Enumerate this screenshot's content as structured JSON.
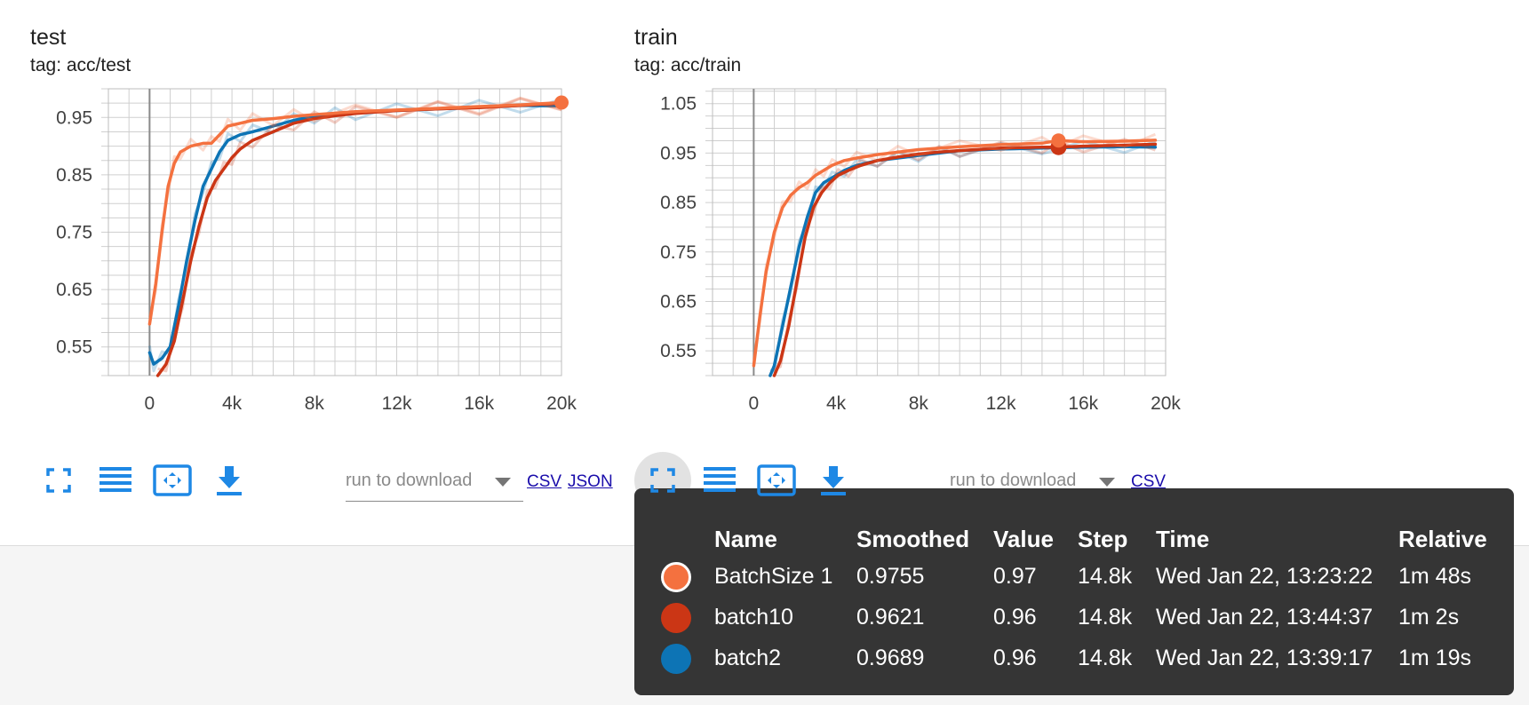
{
  "colors": {
    "batchsize1": "#f4713f",
    "batch10": "#cb3615",
    "batch2": "#0d74b5",
    "icon_blue": "#1e88e5"
  },
  "cards": [
    {
      "title": "test",
      "tag": "tag: acc/test"
    },
    {
      "title": "train",
      "tag": "tag: acc/train"
    }
  ],
  "toolbar": {
    "fullscreen_icon": "fullscreen-icon",
    "list_icon": "list-icon",
    "fit_domain_icon": "fit-domain-icon",
    "download_icon": "download-icon",
    "run_placeholder": "run to download",
    "csv_label": "CSV",
    "json_label": "JSON"
  },
  "chart_data": [
    {
      "type": "line",
      "title": "test",
      "subtitle": "tag: acc/test",
      "x_ticks": [
        "0",
        "4k",
        "8k",
        "12k",
        "16k",
        "20k"
      ],
      "y_ticks": [
        "0.55",
        "0.65",
        "0.75",
        "0.85",
        "0.95"
      ],
      "xlim": [
        -2000,
        20000
      ],
      "ylim": [
        0.5,
        1.0
      ],
      "grid": true,
      "series": [
        {
          "name": "batch2",
          "points": [
            [
              0,
              0.54
            ],
            [
              200,
              0.52
            ],
            [
              600,
              0.53
            ],
            [
              1000,
              0.55
            ],
            [
              1400,
              0.62
            ],
            [
              1800,
              0.7
            ],
            [
              2200,
              0.77
            ],
            [
              2600,
              0.83
            ],
            [
              3000,
              0.86
            ],
            [
              3400,
              0.89
            ],
            [
              3800,
              0.91
            ],
            [
              4400,
              0.92
            ],
            [
              5000,
              0.925
            ],
            [
              6000,
              0.935
            ],
            [
              7000,
              0.945
            ],
            [
              8000,
              0.952
            ],
            [
              9000,
              0.955
            ],
            [
              10000,
              0.958
            ],
            [
              12000,
              0.962
            ],
            [
              14000,
              0.965
            ],
            [
              16000,
              0.968
            ],
            [
              18000,
              0.971
            ],
            [
              20000,
              0.97
            ]
          ]
        },
        {
          "name": "batch10",
          "points": [
            [
              400,
              0.5
            ],
            [
              800,
              0.52
            ],
            [
              1200,
              0.56
            ],
            [
              1600,
              0.63
            ],
            [
              2000,
              0.7
            ],
            [
              2400,
              0.76
            ],
            [
              2800,
              0.81
            ],
            [
              3200,
              0.84
            ],
            [
              3600,
              0.86
            ],
            [
              4000,
              0.88
            ],
            [
              4400,
              0.895
            ],
            [
              5000,
              0.91
            ],
            [
              6000,
              0.925
            ],
            [
              7000,
              0.94
            ],
            [
              8000,
              0.948
            ],
            [
              9000,
              0.953
            ],
            [
              10000,
              0.957
            ],
            [
              12000,
              0.962
            ],
            [
              14000,
              0.965
            ],
            [
              16000,
              0.967
            ],
            [
              18000,
              0.971
            ],
            [
              20000,
              0.975
            ]
          ]
        },
        {
          "name": "BatchSize 1",
          "points": [
            [
              0,
              0.59
            ],
            [
              300,
              0.66
            ],
            [
              600,
              0.75
            ],
            [
              900,
              0.83
            ],
            [
              1200,
              0.87
            ],
            [
              1500,
              0.89
            ],
            [
              2000,
              0.9
            ],
            [
              2600,
              0.905
            ],
            [
              3000,
              0.905
            ],
            [
              3400,
              0.92
            ],
            [
              3800,
              0.935
            ],
            [
              4400,
              0.94
            ],
            [
              5000,
              0.945
            ],
            [
              6000,
              0.948
            ],
            [
              7000,
              0.952
            ],
            [
              8000,
              0.955
            ],
            [
              10000,
              0.96
            ],
            [
              12000,
              0.963
            ],
            [
              14000,
              0.966
            ],
            [
              16000,
              0.969
            ],
            [
              18000,
              0.972
            ],
            [
              20000,
              0.976
            ]
          ]
        }
      ]
    },
    {
      "type": "line",
      "title": "train",
      "subtitle": "tag: acc/train",
      "x_ticks": [
        "0",
        "4k",
        "8k",
        "12k",
        "16k",
        "20k"
      ],
      "y_ticks": [
        "0.55",
        "0.65",
        "0.75",
        "0.85",
        "0.95",
        "1.05"
      ],
      "xlim": [
        -2000,
        20000
      ],
      "ylim": [
        0.5,
        1.08
      ],
      "grid": true,
      "series": [
        {
          "name": "batch2",
          "points": [
            [
              800,
              0.5
            ],
            [
              1000,
              0.52
            ],
            [
              1400,
              0.6
            ],
            [
              1800,
              0.68
            ],
            [
              2200,
              0.76
            ],
            [
              2600,
              0.82
            ],
            [
              3000,
              0.87
            ],
            [
              3400,
              0.89
            ],
            [
              3800,
              0.9
            ],
            [
              4400,
              0.915
            ],
            [
              5000,
              0.925
            ],
            [
              6000,
              0.935
            ],
            [
              7000,
              0.94
            ],
            [
              8000,
              0.945
            ],
            [
              9000,
              0.95
            ],
            [
              10000,
              0.955
            ],
            [
              12000,
              0.958
            ],
            [
              14000,
              0.96
            ],
            [
              16000,
              0.962
            ],
            [
              18000,
              0.963
            ],
            [
              19500,
              0.962
            ]
          ]
        },
        {
          "name": "batch10",
          "points": [
            [
              1000,
              0.5
            ],
            [
              1300,
              0.53
            ],
            [
              1700,
              0.6
            ],
            [
              2100,
              0.69
            ],
            [
              2500,
              0.78
            ],
            [
              2900,
              0.84
            ],
            [
              3300,
              0.87
            ],
            [
              3700,
              0.89
            ],
            [
              4100,
              0.905
            ],
            [
              4600,
              0.915
            ],
            [
              5200,
              0.925
            ],
            [
              6000,
              0.935
            ],
            [
              7000,
              0.942
            ],
            [
              8000,
              0.948
            ],
            [
              9000,
              0.952
            ],
            [
              10000,
              0.955
            ],
            [
              12000,
              0.96
            ],
            [
              14000,
              0.962
            ],
            [
              14800,
              0.962
            ],
            [
              16000,
              0.964
            ],
            [
              18000,
              0.966
            ],
            [
              19500,
              0.968
            ]
          ]
        },
        {
          "name": "BatchSize 1",
          "points": [
            [
              0,
              0.52
            ],
            [
              300,
              0.62
            ],
            [
              600,
              0.71
            ],
            [
              1000,
              0.79
            ],
            [
              1400,
              0.84
            ],
            [
              1800,
              0.865
            ],
            [
              2200,
              0.88
            ],
            [
              2600,
              0.89
            ],
            [
              3000,
              0.905
            ],
            [
              3400,
              0.915
            ],
            [
              3800,
              0.925
            ],
            [
              4400,
              0.935
            ],
            [
              5000,
              0.94
            ],
            [
              6000,
              0.947
            ],
            [
              7000,
              0.952
            ],
            [
              8000,
              0.957
            ],
            [
              10000,
              0.963
            ],
            [
              12000,
              0.967
            ],
            [
              14000,
              0.97
            ],
            [
              14800,
              0.9755
            ],
            [
              16000,
              0.973
            ],
            [
              18000,
              0.974
            ],
            [
              19500,
              0.976
            ]
          ]
        }
      ]
    }
  ],
  "tooltip": {
    "headers": {
      "name": "Name",
      "smoothed": "Smoothed",
      "value": "Value",
      "step": "Step",
      "time": "Time",
      "relative": "Relative"
    },
    "rows": [
      {
        "name": "BatchSize 1",
        "smoothed": "0.9755",
        "value": "0.97",
        "step": "14.8k",
        "time": "Wed Jan 22, 13:23:22",
        "relative": "1m 48s",
        "color": "#f4713f",
        "selected": true
      },
      {
        "name": "batch10",
        "smoothed": "0.9621",
        "value": "0.96",
        "step": "14.8k",
        "time": "Wed Jan 22, 13:44:37",
        "relative": "1m 2s",
        "color": "#cb3615",
        "selected": false
      },
      {
        "name": "batch2",
        "smoothed": "0.9689",
        "value": "0.96",
        "step": "14.8k",
        "time": "Wed Jan 22, 13:39:17",
        "relative": "1m 19s",
        "color": "#0d74b5",
        "selected": false
      }
    ]
  }
}
